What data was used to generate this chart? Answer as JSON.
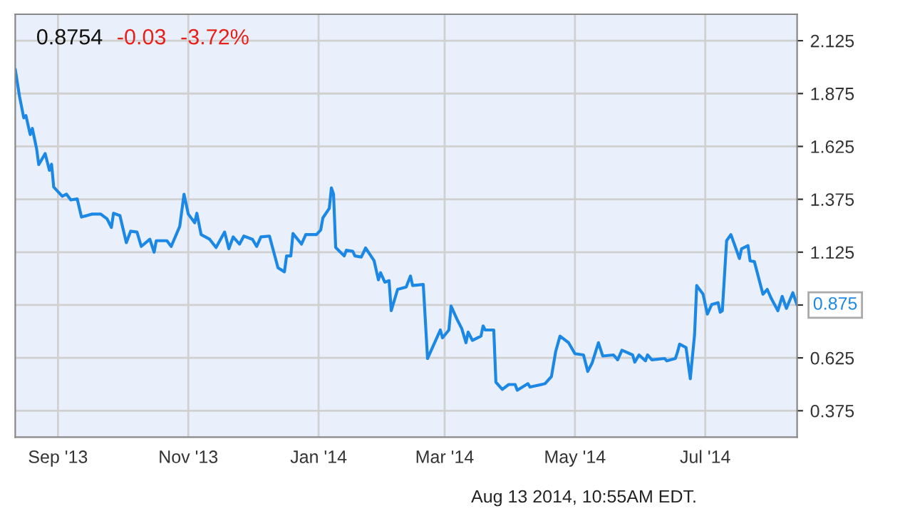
{
  "chart_data": {
    "type": "line",
    "annotations": [
      "0.8754",
      "-0.03",
      "-3.72%",
      {
        "text": "0.875",
        "x": "2014-08-13",
        "y": 0.875
      },
      "Aug 13 2014, 10:55AM EDT."
    ],
    "x": [
      "2013-08-12",
      "2013-08-14",
      "2013-08-16",
      "2013-08-17",
      "2013-08-19",
      "2013-08-20",
      "2013-08-22",
      "2013-08-23",
      "2013-08-26",
      "2013-08-28",
      "2013-08-29",
      "2013-08-30",
      "2013-09-03",
      "2013-09-05",
      "2013-09-07",
      "2013-09-10",
      "2013-09-12",
      "2013-09-17",
      "2013-09-21",
      "2013-09-24",
      "2013-09-26",
      "2013-09-27",
      "2013-09-30",
      "2013-10-03",
      "2013-10-05",
      "2013-10-08",
      "2013-10-10",
      "2013-10-14",
      "2013-10-16",
      "2013-10-17",
      "2013-10-22",
      "2013-10-24",
      "2013-10-28",
      "2013-10-30",
      "2013-11-01",
      "2013-11-04",
      "2013-11-05",
      "2013-11-07",
      "2013-11-11",
      "2013-11-14",
      "2013-11-18",
      "2013-11-20",
      "2013-11-22",
      "2013-11-25",
      "2013-11-27",
      "2013-12-01",
      "2013-12-03",
      "2013-12-05",
      "2013-12-09",
      "2013-12-13",
      "2013-12-16",
      "2013-12-17",
      "2013-12-19",
      "2013-12-20",
      "2013-12-24",
      "2013-12-26",
      "2013-12-31",
      "2014-01-02",
      "2014-01-03",
      "2014-01-06",
      "2014-01-07",
      "2014-01-08",
      "2014-01-09",
      "2014-01-13",
      "2014-01-14",
      "2014-01-17",
      "2014-01-18",
      "2014-01-21",
      "2014-01-23",
      "2014-01-27",
      "2014-01-29",
      "2014-01-30",
      "2014-02-01",
      "2014-02-03",
      "2014-02-04",
      "2014-02-07",
      "2014-02-11",
      "2014-02-13",
      "2014-02-14",
      "2014-02-19",
      "2014-02-21",
      "2014-02-27",
      "2014-02-28",
      "2014-03-03",
      "2014-03-04",
      "2014-03-07",
      "2014-03-09",
      "2014-03-11",
      "2014-03-12",
      "2014-03-14",
      "2014-03-18",
      "2014-03-19",
      "2014-03-20",
      "2014-03-24",
      "2014-03-25",
      "2014-03-28",
      "2014-03-31",
      "2014-04-03",
      "2014-04-04",
      "2014-04-09",
      "2014-04-10",
      "2014-04-17",
      "2014-04-20",
      "2014-04-22",
      "2014-04-24",
      "2014-04-28",
      "2014-05-01",
      "2014-05-05",
      "2014-05-07",
      "2014-05-09",
      "2014-05-12",
      "2014-05-14",
      "2014-05-19",
      "2014-05-21",
      "2014-05-23",
      "2014-05-28",
      "2014-05-29",
      "2014-05-31",
      "2014-06-03",
      "2014-06-04",
      "2014-06-06",
      "2014-06-12",
      "2014-06-13",
      "2014-06-17",
      "2014-06-18",
      "2014-06-19",
      "2014-06-22",
      "2014-06-24",
      "2014-06-26",
      "2014-06-27",
      "2014-06-30",
      "2014-07-02",
      "2014-07-04",
      "2014-07-07",
      "2014-07-08",
      "2014-07-09",
      "2014-07-11",
      "2014-07-13",
      "2014-07-15",
      "2014-07-17",
      "2014-07-18",
      "2014-07-21",
      "2014-07-22",
      "2014-07-24",
      "2014-07-28",
      "2014-07-30",
      "2014-08-01",
      "2014-08-04",
      "2014-08-06",
      "2014-08-08",
      "2014-08-11",
      "2014-08-13"
    ],
    "series": [
      {
        "color": "#1c88e6",
        "values": [
          1.99,
          1.861,
          1.76,
          1.771,
          1.681,
          1.71,
          1.614,
          1.539,
          1.591,
          1.512,
          1.541,
          1.433,
          1.389,
          1.399,
          1.372,
          1.377,
          1.291,
          1.305,
          1.305,
          1.282,
          1.242,
          1.309,
          1.298,
          1.17,
          1.224,
          1.22,
          1.152,
          1.186,
          1.125,
          1.179,
          1.179,
          1.152,
          1.247,
          1.399,
          1.305,
          1.264,
          1.309,
          1.208,
          1.186,
          1.147,
          1.22,
          1.141,
          1.197,
          1.163,
          1.201,
          1.186,
          1.152,
          1.197,
          1.201,
          1.051,
          1.032,
          1.107,
          1.107,
          1.213,
          1.163,
          1.208,
          1.208,
          1.23,
          1.287,
          1.332,
          1.429,
          1.399,
          1.147,
          1.107,
          1.134,
          1.129,
          1.107,
          1.102,
          1.145,
          1.084,
          0.994,
          1.028,
          0.983,
          0.99,
          0.848,
          0.949,
          0.96,
          1.012,
          0.967,
          0.972,
          0.622,
          0.757,
          0.72,
          0.757,
          0.87,
          0.803,
          0.764,
          0.697,
          0.747,
          0.708,
          0.728,
          0.776,
          0.757,
          0.757,
          0.51,
          0.476,
          0.499,
          0.499,
          0.472,
          0.503,
          0.487,
          0.503,
          0.537,
          0.656,
          0.728,
          0.697,
          0.645,
          0.639,
          0.561,
          0.6,
          0.697,
          0.634,
          0.639,
          0.616,
          0.661,
          0.639,
          0.605,
          0.639,
          0.611,
          0.639,
          0.616,
          0.622,
          0.611,
          0.622,
          0.652,
          0.69,
          0.674,
          0.526,
          0.735,
          0.967,
          0.926,
          0.832,
          0.877,
          0.886,
          0.841,
          0.848,
          1.179,
          1.208,
          1.152,
          1.095,
          1.141,
          1.156,
          1.084,
          1.08,
          0.926,
          0.949,
          0.904,
          0.848,
          0.916,
          0.859,
          0.933,
          0.875
        ]
      }
    ],
    "xlim": [
      "2013-08-12",
      "2014-08-13"
    ],
    "xticks": [
      {
        "value": "2013-09-01",
        "label": "Sep '13"
      },
      {
        "value": "2013-11-01",
        "label": "Nov '13"
      },
      {
        "value": "2014-01-01",
        "label": "Jan '14"
      },
      {
        "value": "2014-03-01",
        "label": "Mar '14"
      },
      {
        "value": "2014-05-01",
        "label": "May '14"
      },
      {
        "value": "2014-07-01",
        "label": "Jul '14"
      }
    ],
    "ylim": [
      0.25,
      2.25
    ],
    "yticks": [
      0.375,
      0.625,
      {
        "value": 0.875,
        "label": null
      },
      1.125,
      1.375,
      1.625,
      1.875,
      2.125
    ],
    "grid": true,
    "legend": false,
    "marker": "none",
    "line_style": "solid"
  }
}
